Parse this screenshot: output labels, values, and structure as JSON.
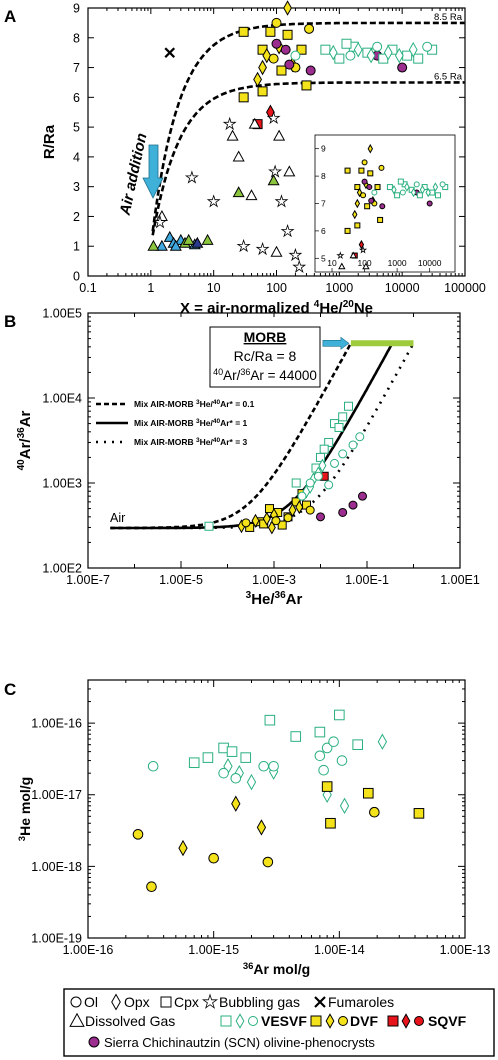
{
  "panels": {
    "a": "A",
    "b": "B",
    "c": "C"
  },
  "colors": {
    "vesvf": "#2ab07e",
    "dvf": "#f4e21b",
    "sqvf": "#e8141b",
    "scn": "#9b2d8f",
    "morb": "#9ecb3b",
    "arrow": "#3fb0d8"
  },
  "legend": {
    "ol": "Ol",
    "opx": "Opx",
    "cpx": "Cpx",
    "bubbling": "Bubbling gas",
    "fumaroles": "Fumaroles",
    "dissolved": "Dissolved Gas",
    "vesvf": "VESVF",
    "dvf": "DVF",
    "sqvf": "SQVF",
    "scn": "Sierra Chichinautzin (SCN) olivine-phenocrysts"
  },
  "chart_data": [
    {
      "type": "scatter",
      "panel": "A",
      "ylabel": "R/Ra",
      "xlabel": "X = air-normalized 4He/20Ne",
      "xlabel_parts": {
        "pre": "X = air-normalized ",
        "sup1": "4",
        "mid": "He/",
        "sup2": "20",
        "post": "Ne"
      },
      "xscale": "log",
      "xlim": [
        0.1,
        100000
      ],
      "ylim": [
        0,
        9
      ],
      "xticks": [
        "0.1",
        "1",
        "10",
        "100",
        "1000",
        "10000",
        "100000"
      ],
      "yticks": [
        "0",
        "1",
        "2",
        "3",
        "4",
        "5",
        "6",
        "7",
        "8",
        "9"
      ],
      "curves": [
        {
          "label": "8.5 Ra",
          "value": 8.5
        },
        {
          "label": "6.5 Ra",
          "value": 6.5
        }
      ],
      "arrow_label": "Air addition",
      "series": [
        {
          "marker": "square",
          "group": "dvf",
          "points": [
            [
              30,
              8.2
            ],
            [
              80,
              8.2
            ],
            [
              150,
              8.1
            ],
            [
              60,
              7.6
            ],
            [
              250,
              7.6
            ],
            [
              120,
              6.9
            ],
            [
              300,
              6.4
            ],
            [
              60,
              6.2
            ],
            [
              30,
              6.0
            ]
          ]
        },
        {
          "marker": "diamond",
          "group": "dvf",
          "points": [
            [
              150,
              9.0
            ],
            [
              60,
              7.0
            ],
            [
              180,
              7.1
            ],
            [
              70,
              7.4
            ],
            [
              110,
              7.7
            ],
            [
              50,
              6.6
            ]
          ]
        },
        {
          "marker": "circle",
          "group": "dvf",
          "points": [
            [
              100,
              8.5
            ],
            [
              330,
              8.3
            ],
            [
              90,
              7.3
            ],
            [
              200,
              7.0
            ]
          ]
        },
        {
          "marker": "circle",
          "group": "scn",
          "points": [
            [
              100,
              7.8
            ],
            [
              140,
              7.6
            ],
            [
              160,
              7.1
            ],
            [
              350,
              6.9
            ],
            [
              4000,
              7.4
            ],
            [
              10000,
              7.0
            ]
          ]
        },
        {
          "marker": "square",
          "group": "sqvf",
          "points": [
            [
              50,
              5.1
            ]
          ]
        },
        {
          "marker": "diamond",
          "group": "sqvf",
          "points": [
            [
              80,
              5.5
            ]
          ]
        },
        {
          "marker": "square",
          "group": "vesvf",
          "points": [
            [
              600,
              7.6
            ],
            [
              1000,
              7.3
            ],
            [
              1700,
              7.7
            ],
            [
              2800,
              7.5
            ],
            [
              5000,
              7.3
            ],
            [
              7000,
              7.6
            ],
            [
              12000,
              7.4
            ],
            [
              18000,
              7.3
            ],
            [
              30000,
              7.6
            ],
            [
              1300,
              7.8
            ]
          ]
        },
        {
          "marker": "diamond",
          "group": "vesvf",
          "points": [
            [
              800,
              7.5
            ],
            [
              2000,
              7.6
            ],
            [
              3200,
              7.4
            ],
            [
              6000,
              7.5
            ],
            [
              9000,
              7.4
            ],
            [
              15000,
              7.6
            ]
          ]
        },
        {
          "marker": "circle",
          "group": "vesvf",
          "points": [
            [
              1500,
              7.4
            ],
            [
              4000,
              7.7
            ],
            [
              25000,
              7.7
            ],
            [
              200,
              7.4
            ]
          ]
        },
        {
          "marker": "triangle",
          "group": "blue",
          "points": [
            [
              1.5,
              1.0
            ],
            [
              2.0,
              1.3
            ],
            [
              2.3,
              1.1
            ],
            [
              3.0,
              1.2
            ],
            [
              2.5,
              1.0
            ],
            [
              5.0,
              1.05
            ]
          ]
        },
        {
          "marker": "triangle",
          "group": "green",
          "points": [
            [
              1.1,
              1.0
            ],
            [
              3.5,
              1.1
            ],
            [
              4.0,
              1.2
            ],
            [
              8.0,
              1.2
            ],
            [
              25,
              2.8
            ],
            [
              90,
              3.2
            ]
          ]
        },
        {
          "marker": "triangle",
          "group": "navy",
          "points": [
            [
              5.5,
              1.1
            ]
          ]
        },
        {
          "marker": "triangle",
          "group": "open",
          "points": [
            [
              1.5,
              2.0
            ],
            [
              20,
              4.7
            ],
            [
              25,
              4.0
            ],
            [
              45,
              5.1
            ],
            [
              110,
              4.7
            ],
            [
              160,
              3.5
            ],
            [
              40,
              2.7
            ],
            [
              100,
              0.8
            ]
          ]
        },
        {
          "marker": "star",
          "group": "open",
          "points": [
            [
              1.4,
              1.8
            ],
            [
              4.5,
              3.3
            ],
            [
              10,
              2.5
            ],
            [
              18,
              5.1
            ],
            [
              30,
              1.0
            ],
            [
              60,
              0.9
            ],
            [
              120,
              2.5
            ],
            [
              95,
              3.5
            ],
            [
              150,
              1.5
            ],
            [
              200,
              0.7
            ],
            [
              230,
              0.3
            ],
            [
              90,
              5.3
            ]
          ]
        },
        {
          "marker": "cross",
          "group": "black",
          "points": [
            [
              2.0,
              7.5
            ]
          ]
        }
      ],
      "inset": {
        "xscale": "log",
        "xlim": [
          3,
          60000
        ],
        "ylim": [
          4.5,
          9.5
        ],
        "xticks": [
          "10",
          "100",
          "1000",
          "10000"
        ],
        "yticks": [
          "5",
          "6",
          "7",
          "8",
          "9"
        ]
      }
    },
    {
      "type": "scatter",
      "panel": "B",
      "ylabel": "40Ar/36Ar",
      "xlabel": "3He/36Ar",
      "xscale": "log",
      "yscale": "log",
      "xlim": [
        1e-07,
        10
      ],
      "ylim": [
        100,
        100000
      ],
      "xticks": [
        "1.00E-7",
        "1.00E-5",
        "1.00E-3",
        "1.00E-1",
        "1.00E1"
      ],
      "yticks": [
        "1.00E2",
        "1.00E3",
        "1.00E4",
        "1.00E5"
      ],
      "morb_box": {
        "title": "MORB",
        "line1": "Rc/Ra = 8",
        "line2": "40Ar/36Ar = 44000"
      },
      "air_label": "Air",
      "mixing_lines": [
        {
          "label": "Mix AIR-MORB 3He/40Ar* = 0.1",
          "k": 0.1
        },
        {
          "label": "Mix AIR-MORB 3He/40Ar* = 1",
          "k": 1
        },
        {
          "label": "Mix AIR-MORB 3He/40Ar* = 3",
          "k": 3
        }
      ],
      "series": [
        {
          "marker": "square",
          "group": "dvf",
          "points": [
            [
              0.0003,
              300
            ],
            [
              0.0005,
              350
            ],
            [
              0.0008,
              500
            ],
            [
              0.0012,
              450
            ],
            [
              0.002,
              400
            ],
            [
              0.0015,
              320
            ],
            [
              0.003,
              600
            ],
            [
              0.004,
              750
            ],
            [
              0.005,
              550
            ],
            [
              0.0006,
              330
            ]
          ]
        },
        {
          "marker": "diamond",
          "group": "dvf",
          "points": [
            [
              0.0002,
              310
            ],
            [
              0.0004,
              360
            ],
            [
              0.0007,
              380
            ],
            [
              0.001,
              420
            ],
            [
              0.0025,
              480
            ],
            [
              0.0035,
              520
            ],
            [
              0.0009,
              300
            ]
          ]
        },
        {
          "marker": "circle",
          "group": "dvf",
          "points": [
            [
              0.00025,
              340
            ],
            [
              0.0011,
              360
            ],
            [
              0.002,
              390
            ],
            [
              0.006,
              480
            ]
          ]
        },
        {
          "marker": "square",
          "group": "sqvf",
          "points": [
            [
              0.012,
              1200
            ]
          ]
        },
        {
          "marker": "circle",
          "group": "scn",
          "points": [
            [
              0.01,
              400
            ],
            [
              0.05,
              550
            ],
            [
              0.08,
              700
            ],
            [
              0.03,
              450
            ]
          ]
        },
        {
          "marker": "square",
          "group": "vesvf",
          "points": [
            [
              0.003,
              1000
            ],
            [
              0.008,
              1500
            ],
            [
              0.01,
              2000
            ],
            [
              0.015,
              3000
            ],
            [
              0.02,
              5000
            ],
            [
              0.03,
              6000
            ],
            [
              0.04,
              8000
            ],
            [
              0.025,
              4500
            ],
            [
              0.012,
              2500
            ],
            [
              4e-05,
              310
            ]
          ]
        },
        {
          "marker": "diamond",
          "group": "vesvf",
          "points": [
            [
              0.005,
              800
            ],
            [
              0.007,
              1100
            ],
            [
              0.009,
              1300
            ],
            [
              0.011,
              1600
            ],
            [
              0.006,
              900
            ]
          ]
        },
        {
          "marker": "circle",
          "group": "vesvf",
          "points": [
            [
              0.004,
              700
            ],
            [
              0.006,
              1000
            ],
            [
              0.009,
              1200
            ],
            [
              0.02,
              1700
            ],
            [
              0.03,
              2200
            ],
            [
              0.05,
              2800
            ],
            [
              0.07,
              3500
            ],
            [
              0.015,
              950
            ]
          ]
        }
      ]
    },
    {
      "type": "scatter",
      "panel": "C",
      "ylabel": "3He mol/g",
      "xlabel": "36Ar mol/g",
      "xscale": "log",
      "yscale": "log",
      "xlim": [
        1e-16,
        1e-13
      ],
      "ylim": [
        1e-19,
        4e-16
      ],
      "xticks": [
        "1.00E-16",
        "1.00E-15",
        "1.00E-14",
        "1.00E-13"
      ],
      "yticks": [
        "1.00E-19",
        "1.00E-18",
        "1.00E-17",
        "1.00E-16"
      ],
      "series": [
        {
          "marker": "square",
          "group": "vesvf",
          "points": [
            [
              7e-16,
              2.8e-17
            ],
            [
              9e-16,
              3.3e-17
            ],
            [
              1.2e-15,
              4.5e-17
            ],
            [
              1.4e-15,
              4e-17
            ],
            [
              1.8e-15,
              3.3e-17
            ],
            [
              2.8e-15,
              1.1e-16
            ],
            [
              4.5e-15,
              6.5e-17
            ],
            [
              7e-15,
              7.5e-17
            ],
            [
              1e-14,
              1.3e-16
            ],
            [
              1.4e-14,
              5e-17
            ]
          ]
        },
        {
          "marker": "diamond",
          "group": "vesvf",
          "points": [
            [
              1.3e-15,
              2.5e-17
            ],
            [
              1.6e-15,
              2e-17
            ],
            [
              2e-15,
              1.5e-17
            ],
            [
              3e-15,
              2.1e-17
            ],
            [
              8e-15,
              1e-17
            ],
            [
              1.1e-14,
              7e-18
            ],
            [
              2.2e-14,
              5.5e-17
            ]
          ]
        },
        {
          "marker": "circle",
          "group": "vesvf",
          "points": [
            [
              3.3e-16,
              2.5e-17
            ],
            [
              1.2e-15,
              2e-17
            ],
            [
              1.5e-15,
              1.7e-17
            ],
            [
              2.5e-15,
              2.5e-17
            ],
            [
              3e-15,
              2.5e-17
            ],
            [
              7e-15,
              3.5e-17
            ],
            [
              8e-15,
              4.5e-17
            ],
            [
              9e-15,
              5.5e-17
            ],
            [
              1.05e-14,
              3e-17
            ],
            [
              7.5e-15,
              2.2e-17
            ]
          ]
        },
        {
          "marker": "square",
          "group": "dvf",
          "points": [
            [
              8e-15,
              1.3e-17
            ],
            [
              8.5e-15,
              4e-18
            ],
            [
              1.7e-14,
              1.05e-17
            ],
            [
              4.3e-14,
              5.5e-18
            ]
          ]
        },
        {
          "marker": "diamond",
          "group": "dvf",
          "points": [
            [
              1.5e-15,
              7.5e-18
            ],
            [
              2.4e-15,
              3.5e-18
            ],
            [
              5.7e-16,
              1.8e-18
            ]
          ]
        },
        {
          "marker": "circle",
          "group": "dvf",
          "points": [
            [
              2.5e-16,
              2.8e-18
            ],
            [
              3.2e-16,
              5.2e-19
            ],
            [
              1e-15,
              1.3e-18
            ],
            [
              2.7e-15,
              1.15e-18
            ],
            [
              1.9e-14,
              5.7e-18
            ]
          ]
        }
      ]
    }
  ]
}
